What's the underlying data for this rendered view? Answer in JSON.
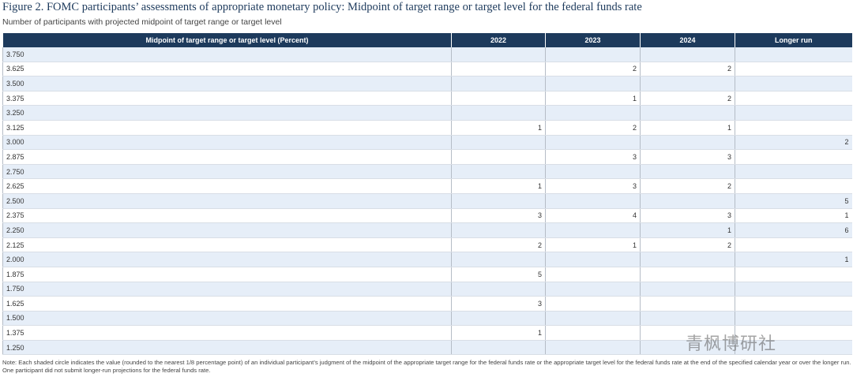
{
  "header": {
    "title": "Figure 2. FOMC participants’ assessments of appropriate monetary policy: Midpoint of target range or target level for the federal funds rate",
    "subtitle": "Number of participants with projected midpoint of target range or target level"
  },
  "table": {
    "columns": [
      "Midpoint of target range or target level (Percent)",
      "2022",
      "2023",
      "2024",
      "Longer run"
    ],
    "rows": [
      [
        "3.750",
        null,
        null,
        null,
        null
      ],
      [
        "3.625",
        null,
        2,
        2,
        null
      ],
      [
        "3.500",
        null,
        null,
        null,
        null
      ],
      [
        "3.375",
        null,
        1,
        2,
        null
      ],
      [
        "3.250",
        null,
        null,
        null,
        null
      ],
      [
        "3.125",
        1,
        2,
        1,
        null
      ],
      [
        "3.000",
        null,
        null,
        null,
        2
      ],
      [
        "2.875",
        null,
        3,
        3,
        null
      ],
      [
        "2.750",
        null,
        null,
        null,
        null
      ],
      [
        "2.625",
        1,
        3,
        2,
        null
      ],
      [
        "2.500",
        null,
        null,
        null,
        5
      ],
      [
        "2.375",
        3,
        4,
        3,
        1
      ],
      [
        "2.250",
        null,
        null,
        1,
        6
      ],
      [
        "2.125",
        2,
        1,
        2,
        null
      ],
      [
        "2.000",
        null,
        null,
        null,
        1
      ],
      [
        "1.875",
        5,
        null,
        null,
        null
      ],
      [
        "1.750",
        null,
        null,
        null,
        null
      ],
      [
        "1.625",
        3,
        null,
        null,
        null
      ],
      [
        "1.500",
        null,
        null,
        null,
        null
      ],
      [
        "1.375",
        1,
        null,
        null,
        null
      ],
      [
        "1.250",
        null,
        null,
        null,
        null
      ]
    ]
  },
  "note": "Note: Each shaded circle indicates the value (rounded to the nearest 1/8 percentage point) of an individual participant’s judgment of the midpoint of the appropriate target range for the federal funds rate or the appropriate target level for the federal funds rate at the end of the specified calendar year or over the longer run. One participant did not submit longer-run projections for the federal funds rate.",
  "watermark": "青枫博研社"
}
